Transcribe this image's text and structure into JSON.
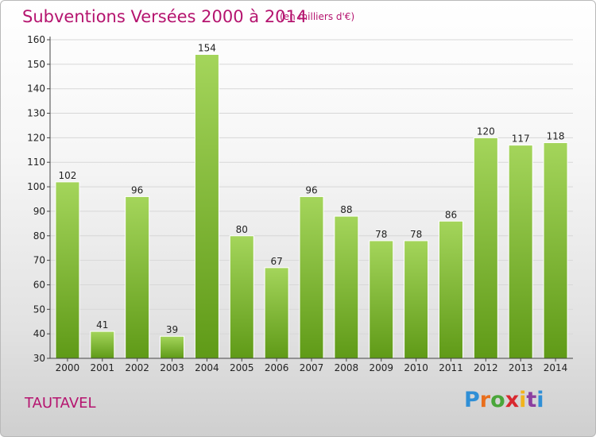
{
  "header": {
    "title": "Subventions Versées 2000 à 2014",
    "subtitle": "(en milliers d'€)"
  },
  "footer": {
    "commune": "TAUTAVEL",
    "logo_text": "Proxiti"
  },
  "colors": {
    "title": "#b5146f",
    "bar_light": "#a4d55b",
    "bar_dark": "#5f9a17",
    "grid": "#d7d7d7",
    "axis": "#444444"
  },
  "chart_data": {
    "type": "bar",
    "title": "Subventions Versées 2000 à 2014",
    "xlabel": "",
    "ylabel": "",
    "categories": [
      "2000",
      "2001",
      "2002",
      "2003",
      "2004",
      "2005",
      "2006",
      "2007",
      "2008",
      "2009",
      "2010",
      "2011",
      "2012",
      "2013",
      "2014"
    ],
    "values": [
      102,
      41,
      96,
      39,
      154,
      80,
      67,
      96,
      88,
      78,
      78,
      86,
      120,
      117,
      118
    ],
    "ylim": [
      30,
      160
    ],
    "yticks": [
      30,
      40,
      50,
      60,
      70,
      80,
      90,
      100,
      110,
      120,
      130,
      140,
      150,
      160
    ],
    "grid": true,
    "legend": "none"
  }
}
